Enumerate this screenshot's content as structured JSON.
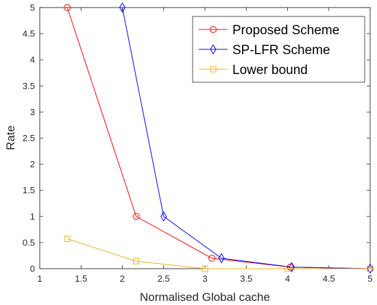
{
  "chart_data": {
    "type": "line",
    "title": "",
    "xlabel": "Normalised Global cache",
    "ylabel": "Rate",
    "xlim": [
      1,
      5
    ],
    "ylim": [
      0,
      5
    ],
    "x_ticks": [
      1,
      1.5,
      2,
      2.5,
      3,
      3.5,
      4,
      4.5,
      5
    ],
    "x_tick_labels": [
      "1",
      "1.5",
      "2",
      "2.5",
      "3",
      "3.5",
      "4",
      "4.5",
      "5"
    ],
    "y_ticks": [
      0,
      0.5,
      1,
      1.5,
      2,
      2.5,
      3,
      3.5,
      4,
      4.5,
      5
    ],
    "y_tick_labels": [
      "0",
      "0.5",
      "1",
      "1.5",
      "2",
      "2.5",
      "3",
      "3.5",
      "4",
      "4.5",
      "5"
    ],
    "grid": false,
    "legend_position": "top-right",
    "series": [
      {
        "name": "Proposed Scheme",
        "color": "#ff0000",
        "marker": "circle",
        "x": [
          1.333,
          2.167,
          3.083,
          4.033,
          5
        ],
        "y": [
          5,
          1,
          0.2,
          0.03,
          0
        ]
      },
      {
        "name": "SP-LFR Scheme",
        "color": "#0000ff",
        "marker": "diamond",
        "x": [
          2,
          2.5,
          3.2,
          4.05,
          5
        ],
        "y": [
          5,
          1,
          0.2,
          0.03,
          0
        ]
      },
      {
        "name": "Lower bound",
        "color": "#edb120",
        "marker": "square",
        "x": [
          1.333,
          2.167,
          3,
          4,
          5
        ],
        "y": [
          0.571,
          0.143,
          0,
          0,
          0
        ]
      }
    ]
  }
}
